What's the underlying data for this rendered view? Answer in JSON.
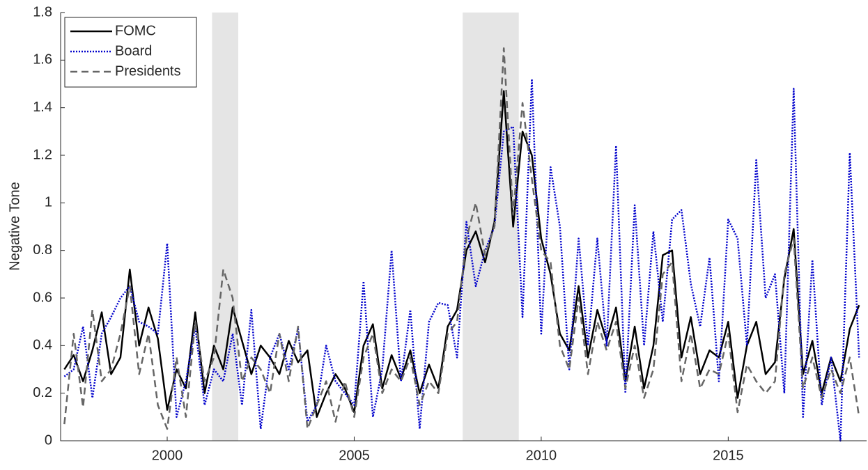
{
  "chart_data": {
    "type": "line",
    "y_label": "Negative Tone",
    "x": [
      1997.25,
      1997.5,
      1997.75,
      1998,
      1998.25,
      1998.5,
      1998.75,
      1999,
      1999.25,
      1999.5,
      1999.75,
      2000,
      2000.25,
      2000.5,
      2000.75,
      2001,
      2001.25,
      2001.5,
      2001.75,
      2002,
      2002.25,
      2002.5,
      2002.75,
      2003,
      2003.25,
      2003.5,
      2003.75,
      2004,
      2004.25,
      2004.5,
      2004.75,
      2005,
      2005.25,
      2005.5,
      2005.75,
      2006,
      2006.25,
      2006.5,
      2006.75,
      2007,
      2007.25,
      2007.5,
      2007.75,
      2008,
      2008.25,
      2008.5,
      2008.75,
      2009,
      2009.25,
      2009.5,
      2009.75,
      2010,
      2010.25,
      2010.5,
      2010.75,
      2011,
      2011.25,
      2011.5,
      2011.75,
      2012,
      2012.25,
      2012.5,
      2012.75,
      2013,
      2013.25,
      2013.5,
      2013.75,
      2014,
      2014.25,
      2014.5,
      2014.75,
      2015,
      2015.25,
      2015.5,
      2015.75,
      2016,
      2016.25,
      2016.5,
      2016.75,
      2017,
      2017.25,
      2017.5,
      2017.75,
      2018,
      2018.25,
      2018.5
    ],
    "series": [
      {
        "name": "FOMC",
        "color": "#000000",
        "dash": "solid",
        "values": [
          0.3,
          0.36,
          0.25,
          0.38,
          0.54,
          0.28,
          0.35,
          0.72,
          0.4,
          0.56,
          0.43,
          0.13,
          0.3,
          0.22,
          0.54,
          0.2,
          0.4,
          0.3,
          0.56,
          0.42,
          0.28,
          0.4,
          0.35,
          0.28,
          0.42,
          0.33,
          0.38,
          0.1,
          0.2,
          0.28,
          0.22,
          0.12,
          0.4,
          0.49,
          0.22,
          0.36,
          0.26,
          0.38,
          0.2,
          0.32,
          0.22,
          0.48,
          0.55,
          0.8,
          0.88,
          0.75,
          0.92,
          1.47,
          0.9,
          1.3,
          1.2,
          0.85,
          0.7,
          0.45,
          0.38,
          0.65,
          0.35,
          0.55,
          0.42,
          0.56,
          0.25,
          0.48,
          0.22,
          0.4,
          0.78,
          0.8,
          0.35,
          0.52,
          0.28,
          0.38,
          0.35,
          0.5,
          0.18,
          0.4,
          0.5,
          0.28,
          0.33,
          0.68,
          0.89,
          0.28,
          0.42,
          0.2,
          0.35,
          0.25,
          0.47,
          0.57
        ]
      },
      {
        "name": "Board",
        "color": "#0000cc",
        "dash": "dotted",
        "values": [
          0.27,
          0.3,
          0.48,
          0.18,
          0.45,
          0.52,
          0.6,
          0.65,
          0.5,
          0.48,
          0.45,
          0.83,
          0.1,
          0.25,
          0.48,
          0.15,
          0.3,
          0.25,
          0.45,
          0.15,
          0.55,
          0.05,
          0.35,
          0.45,
          0.3,
          0.47,
          0.08,
          0.15,
          0.4,
          0.25,
          0.2,
          0.15,
          0.67,
          0.1,
          0.3,
          0.8,
          0.25,
          0.55,
          0.05,
          0.5,
          0.58,
          0.57,
          0.35,
          0.92,
          0.65,
          0.8,
          0.9,
          1.3,
          1.32,
          0.52,
          1.52,
          0.45,
          1.15,
          0.9,
          0.3,
          0.85,
          0.4,
          0.85,
          0.4,
          1.24,
          0.2,
          0.99,
          0.4,
          0.88,
          0.5,
          0.93,
          0.97,
          0.66,
          0.48,
          0.77,
          0.25,
          0.93,
          0.85,
          0.4,
          1.18,
          0.6,
          0.7,
          0.2,
          1.48,
          0.1,
          0.76,
          0.15,
          0.35,
          0.0,
          1.21,
          0.35
        ]
      },
      {
        "name": "Presidents",
        "color": "#666666",
        "dash": "dashed",
        "values": [
          0.07,
          0.45,
          0.14,
          0.55,
          0.25,
          0.3,
          0.45,
          0.65,
          0.28,
          0.45,
          0.15,
          0.05,
          0.35,
          0.1,
          0.5,
          0.25,
          0.35,
          0.72,
          0.6,
          0.25,
          0.35,
          0.3,
          0.2,
          0.45,
          0.25,
          0.48,
          0.05,
          0.15,
          0.25,
          0.08,
          0.25,
          0.1,
          0.35,
          0.45,
          0.2,
          0.3,
          0.25,
          0.35,
          0.15,
          0.25,
          0.2,
          0.45,
          0.5,
          0.85,
          1.0,
          0.78,
          0.9,
          1.65,
          0.95,
          1.42,
          1.1,
          0.8,
          0.75,
          0.4,
          0.3,
          0.6,
          0.28,
          0.5,
          0.38,
          0.5,
          0.22,
          0.4,
          0.18,
          0.3,
          0.7,
          0.75,
          0.25,
          0.45,
          0.22,
          0.3,
          0.28,
          0.45,
          0.12,
          0.32,
          0.25,
          0.2,
          0.25,
          0.7,
          0.85,
          0.22,
          0.35,
          0.18,
          0.3,
          0.2,
          0.35,
          0.1
        ]
      }
    ],
    "recessions": [
      [
        2001.2,
        2001.9
      ],
      [
        2007.9,
        2009.4
      ]
    ],
    "recession_color": "#e5e5e5",
    "xlim": [
      1997.15,
      2018.7
    ],
    "xticks": [
      2000,
      2005,
      2010,
      2015
    ],
    "ylim": [
      0,
      1.8
    ],
    "yticks": [
      0,
      0.2,
      0.4,
      0.6,
      0.8,
      1,
      1.2,
      1.4,
      1.6,
      1.8
    ],
    "legend": "upper left"
  }
}
